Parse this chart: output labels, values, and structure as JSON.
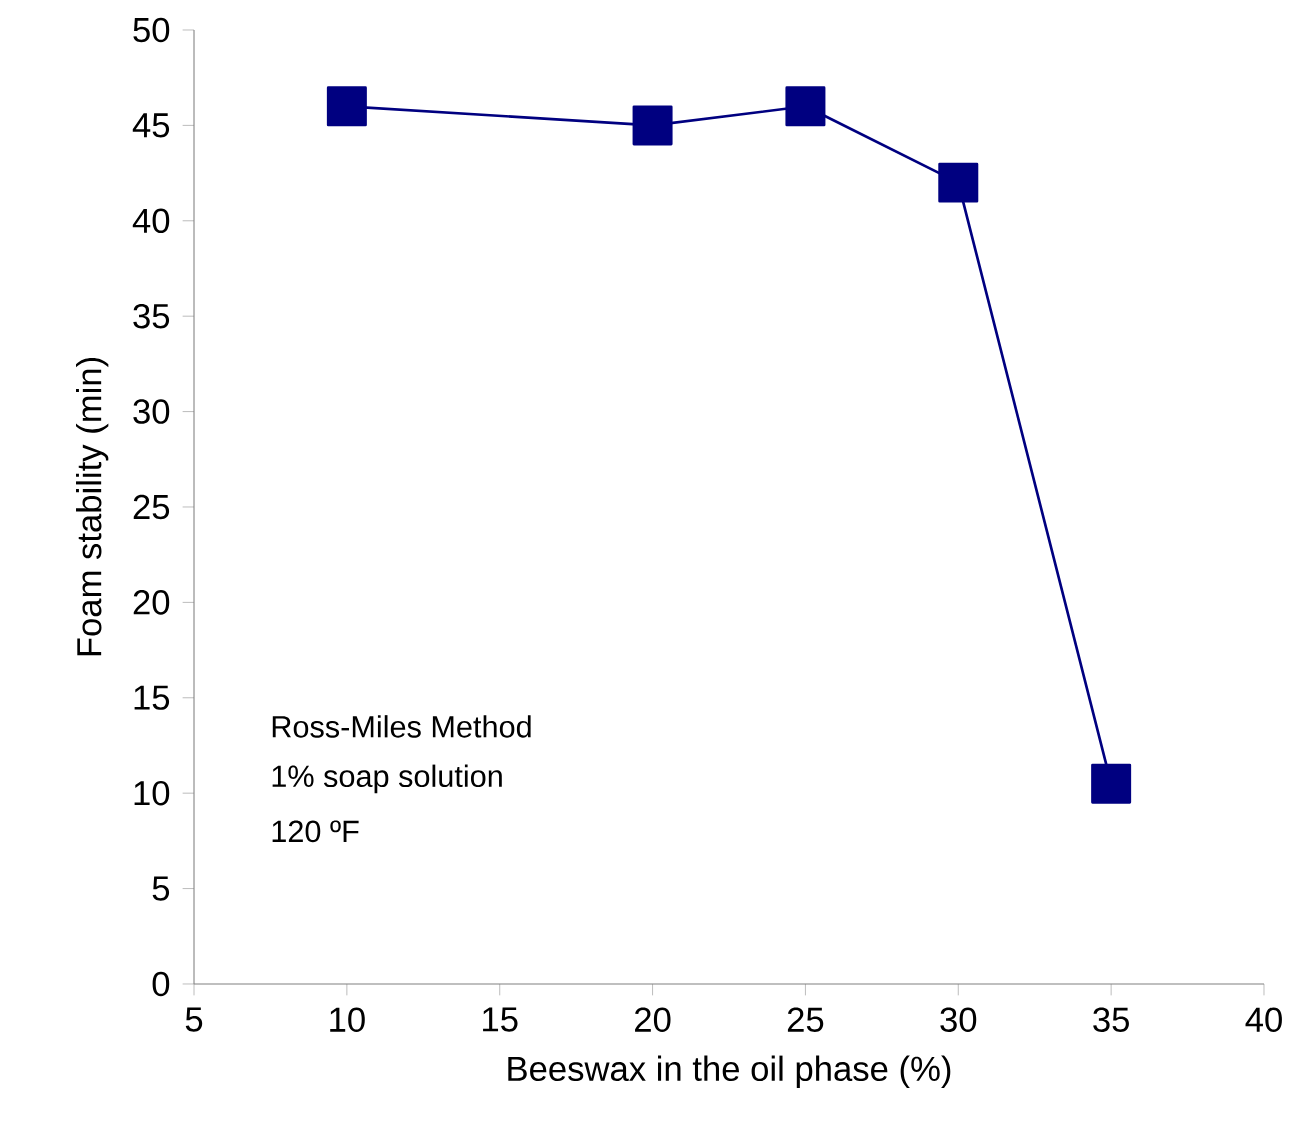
{
  "chart_data": {
    "type": "line",
    "xlabel": "Beeswax in the oil phase (%)",
    "ylabel": "Foam stability (min)",
    "x": [
      10,
      20,
      25,
      30,
      35
    ],
    "series": [
      {
        "color": "#000080",
        "values": [
          46,
          45,
          46,
          42,
          10.5
        ]
      }
    ],
    "marker": "square",
    "line_style": "solid",
    "xlim": [
      5,
      40
    ],
    "ylim": [
      0,
      50
    ],
    "xticks": [
      5,
      10,
      15,
      20,
      25,
      30,
      35,
      40
    ],
    "yticks": [
      0,
      5,
      10,
      15,
      20,
      25,
      30,
      35,
      40,
      45,
      50
    ],
    "annotations": [
      "Ross-Miles Method",
      "1% soap solution",
      "120 ºF"
    ]
  }
}
